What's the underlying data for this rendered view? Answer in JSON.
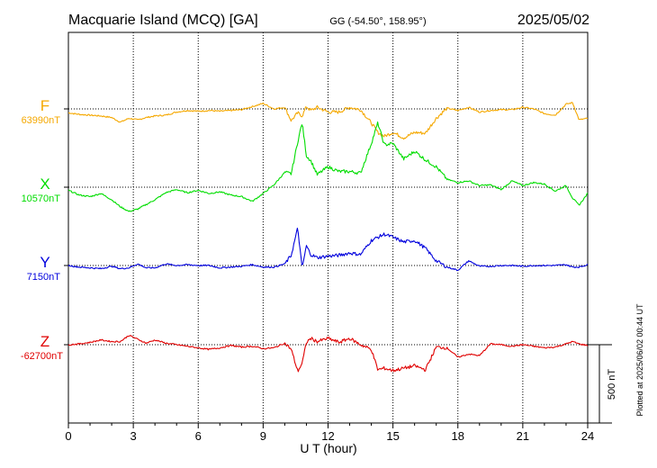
{
  "header": {
    "station": "Macquarie Island (MCQ)  [GA]",
    "coords": "GG (-54.50°, 158.95°)",
    "date": "2025/05/02"
  },
  "footer_note": "Plotted at 2025/06/02 00:44 UT",
  "scale_label": "500 nT",
  "colors": {
    "F": "#f5a800",
    "X": "#00dd00",
    "Y": "#0000dd",
    "Z": "#e00000",
    "axis": "#000000",
    "grid": "#000000"
  },
  "chart_data": {
    "type": "line",
    "xlabel": "U T (hour)",
    "x_ticks": [
      "0",
      "3",
      "6",
      "9",
      "12",
      "15",
      "18",
      "21",
      "24"
    ],
    "xlim": [
      0,
      24
    ],
    "grid": true,
    "scale_bar_nT": 500,
    "x": [
      0,
      0.5,
      1,
      1.5,
      2,
      2.4,
      2.8,
      3.2,
      3.6,
      4,
      4.5,
      5,
      5.5,
      6,
      6.5,
      7,
      7.5,
      8,
      8.5,
      9,
      9.5,
      10,
      10.3,
      10.6,
      10.8,
      11,
      11.2,
      11.5,
      12,
      12.5,
      13,
      13.5,
      14,
      14.3,
      14.6,
      15,
      15.5,
      16,
      16.5,
      17,
      17.5,
      18,
      18.5,
      19,
      19.5,
      20,
      20.5,
      21,
      21.5,
      22,
      22.5,
      23,
      23.3,
      23.6,
      24
    ],
    "series": [
      {
        "name": "F",
        "label_value": "63990nT",
        "values": [
          -25,
          -35,
          -40,
          -45,
          -55,
          -85,
          -60,
          -70,
          -55,
          -45,
          -40,
          -20,
          -10,
          -15,
          -10,
          -15,
          -10,
          -5,
          15,
          35,
          0,
          10,
          -75,
          -25,
          -45,
          15,
          -10,
          10,
          -20,
          -20,
          10,
          -5,
          -90,
          -150,
          -175,
          -150,
          -185,
          -150,
          -155,
          -60,
          5,
          -10,
          10,
          -20,
          -10,
          -5,
          -5,
          10,
          0,
          -30,
          -40,
          30,
          40,
          -70,
          -60
        ]
      },
      {
        "name": "X",
        "label_value": "10570nT",
        "values": [
          -20,
          -50,
          -60,
          -40,
          -80,
          -125,
          -155,
          -140,
          -110,
          -80,
          -35,
          -15,
          -35,
          -20,
          -40,
          -30,
          -50,
          -60,
          -90,
          -40,
          15,
          95,
          85,
          290,
          410,
          200,
          170,
          80,
          130,
          100,
          100,
          90,
          280,
          410,
          270,
          280,
          180,
          230,
          175,
          130,
          50,
          30,
          40,
          10,
          15,
          -15,
          40,
          10,
          30,
          20,
          -25,
          10,
          -70,
          -115,
          -40
        ]
      },
      {
        "name": "Y",
        "label_value": "7150nT",
        "values": [
          0,
          -10,
          -15,
          -20,
          -5,
          -20,
          -15,
          10,
          -15,
          -15,
          10,
          0,
          5,
          0,
          0,
          -15,
          -10,
          -5,
          5,
          -10,
          -10,
          10,
          65,
          240,
          -15,
          125,
          70,
          50,
          60,
          65,
          80,
          70,
          160,
          180,
          200,
          180,
          150,
          160,
          110,
          30,
          -10,
          -30,
          30,
          -5,
          -5,
          0,
          0,
          -5,
          0,
          0,
          0,
          5,
          -10,
          -10,
          5
        ]
      },
      {
        "name": "Z",
        "label_value": "-62700nT",
        "values": [
          0,
          5,
          15,
          30,
          20,
          20,
          60,
          35,
          10,
          30,
          10,
          0,
          -10,
          -20,
          -30,
          -20,
          -5,
          -15,
          -10,
          -25,
          -20,
          10,
          -30,
          -170,
          -120,
          15,
          40,
          20,
          40,
          15,
          40,
          0,
          -30,
          -160,
          -150,
          -165,
          -150,
          -135,
          -160,
          -15,
          -20,
          -80,
          -60,
          -70,
          5,
          0,
          -10,
          0,
          -10,
          -20,
          -15,
          5,
          20,
          5,
          -5
        ]
      }
    ]
  }
}
